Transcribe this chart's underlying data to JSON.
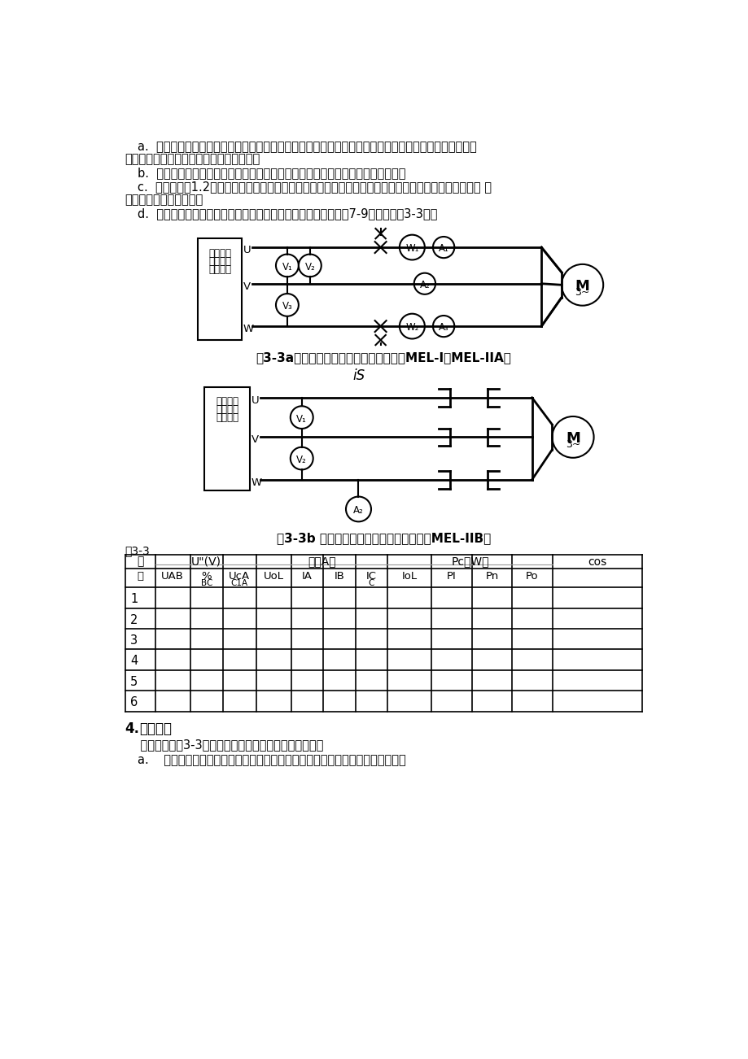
{
  "page_bg": "#ffffff",
  "text_color": "#000000",
  "para_a1": "a.  起动电压前，把交流电压调节旋钮退至零位，然后接通电源，逐渐升高电压，使电机起动旋转，观察电",
  "para_a2": "机旋转方向。并使电机旋转方向符合要求。",
  "para_b": "b.  保持电动机在额定电压下空载运行数分钟，使机械损耗达到稳定后再进行试验。",
  "para_c1": "c.  调节电压由1.2倍额定电压开始逐渐降低电压，直至电流或功率显著增大为止。在这范围内读取空载电 压",
  "para_c2": "、空载电流、空载功率。",
  "para_d": "d.  在测取空载实验数据时，在额定电压附近多测几点，共取数据7-9组记录于表3-3中。",
  "box_label1": "主控制屏",
  "box_label2": "三相交流",
  "box_label3": "电源输出",
  "caption_3a": "图3-3a三相笼型异步电动机实验接线图（MEL-I、MEL-IIA）",
  "caption_3b": "图3-3b 三相笼型异步电动机实验接线图（MEL-IIB）",
  "is_label": "iS",
  "table_title": "表3-3",
  "col_h1_seq": "序",
  "col_h1_U": "U\"(V)",
  "col_h1_val": "值（A）",
  "col_h1_Pc": "Pc（W）",
  "col_h1_cos": "cos",
  "col_h2": [
    "号",
    "UAB",
    "%",
    "UcA",
    "UoL",
    "IA",
    "IB",
    "IC",
    "IoL",
    "PI",
    "Pn",
    "Po",
    ""
  ],
  "col_h2b": [
    "",
    "",
    "BC",
    "C1A",
    "",
    "",
    "",
    "C",
    "",
    "",
    "",
    "",
    ""
  ],
  "section4_num": "4.",
  "section4_title": "  短路实验",
  "section4_body": "    测量线路如图3-3。将测功机和三相异步电机同轴联接。",
  "section4_a": "a.    将起子插入测功机堵转孔中，使测功机定转子堵住。将三相调压器退至零位。"
}
